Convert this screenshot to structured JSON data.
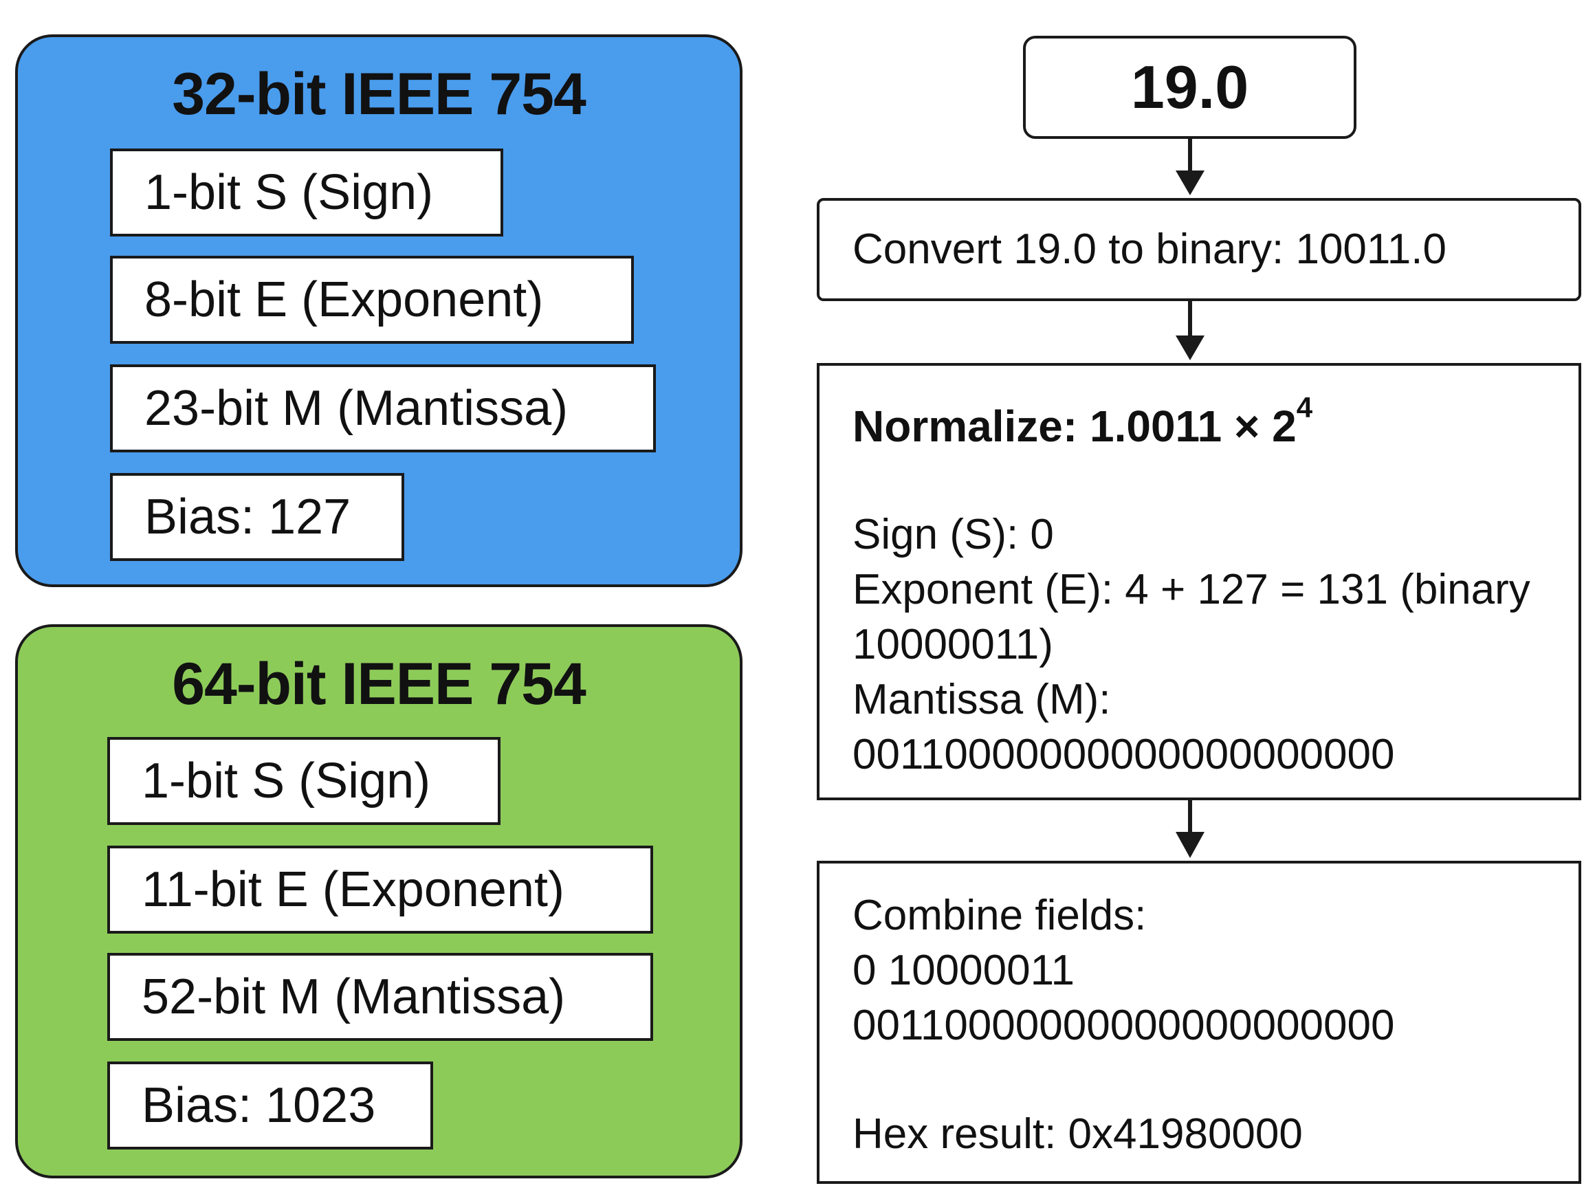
{
  "float32": {
    "title": "32-bit IEEE 754",
    "color": "#4a9ced",
    "fields": [
      "1-bit S (Sign)",
      "8-bit E (Exponent)",
      "23-bit M (Mantissa)",
      "Bias: 127"
    ]
  },
  "float64": {
    "title": "64-bit IEEE 754",
    "color": "#8dcb59",
    "fields": [
      "1-bit S (Sign)",
      "11-bit E (Exponent)",
      "52-bit M (Mantissa)",
      "Bias: 1023"
    ]
  },
  "flow": {
    "input": "19.0",
    "convert": "Convert 19.0 to binary: 10011.0",
    "normalize": {
      "heading": "Normalize: 1.0011 × 2",
      "heading_exponent": "4",
      "sign": "Sign (S): 0",
      "exponent_line1": "Exponent (E): 4 + 127 = 131 (binary",
      "exponent_line2": "10000011)",
      "mantissa_label": "Mantissa (M):",
      "mantissa_value": "00110000000000000000000"
    },
    "combine": {
      "label": "Combine fields:",
      "line1": "0 10000011",
      "line2": "00110000000000000000000",
      "hex": "Hex result: 0x41980000"
    }
  }
}
